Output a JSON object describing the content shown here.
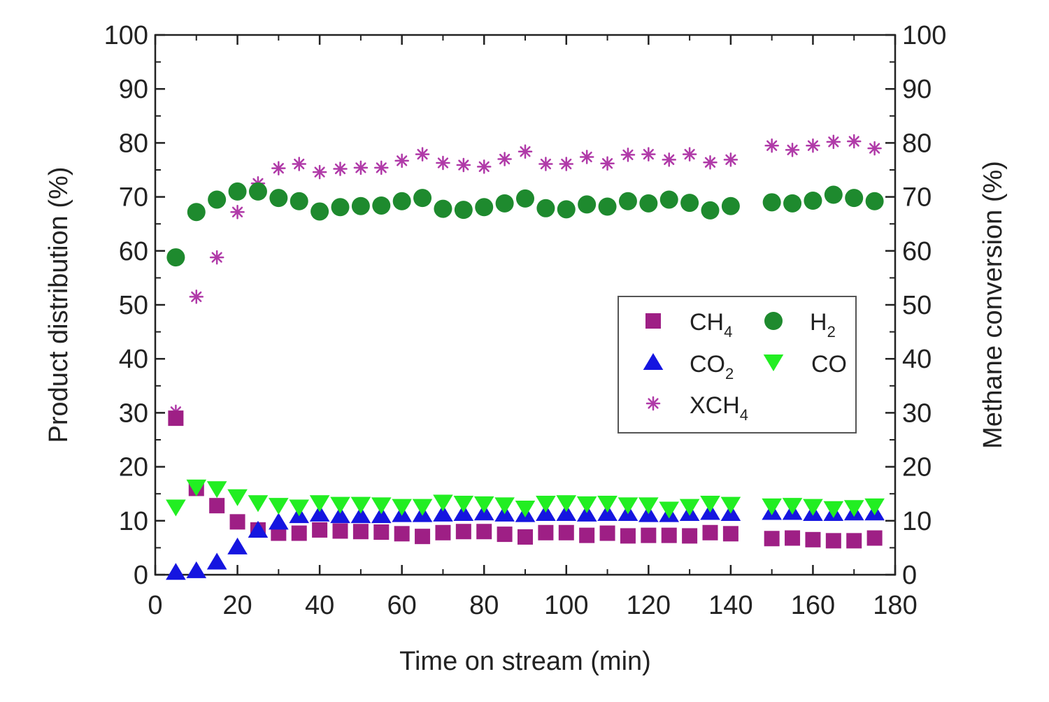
{
  "chart_data": {
    "type": "scatter",
    "xlabel": "Time on stream (min)",
    "ylabel_left": "Product distribution (%)",
    "ylabel_right": "Methane conversion (%)",
    "xlim": [
      0,
      180
    ],
    "ylim": [
      0,
      100
    ],
    "x_ticks": [
      "0",
      "20",
      "40",
      "60",
      "80",
      "100",
      "120",
      "140",
      "160",
      "180"
    ],
    "y_ticks": [
      "0",
      "10",
      "20",
      "30",
      "40",
      "50",
      "60",
      "70",
      "80",
      "90",
      "100"
    ],
    "grid": false,
    "legend_position": "center-right",
    "legend": [
      {
        "base": "CH",
        "sub": "4"
      },
      {
        "base": "H",
        "sub": "2"
      },
      {
        "base": "CO",
        "sub": "2"
      },
      {
        "base": "CO",
        "sub": ""
      },
      {
        "base": "XCH",
        "sub": "4"
      }
    ],
    "x": [
      5,
      10,
      15,
      20,
      25,
      30,
      35,
      40,
      45,
      50,
      55,
      60,
      65,
      70,
      75,
      80,
      85,
      90,
      95,
      100,
      105,
      110,
      115,
      120,
      125,
      130,
      135,
      140,
      150,
      155,
      160,
      165,
      170,
      175
    ],
    "series": [
      {
        "name": "CH4",
        "marker": "square",
        "color": "#9e1f85",
        "values": [
          29,
          16,
          12.8,
          9.8,
          8.3,
          7.7,
          7.7,
          8.3,
          8.1,
          8.0,
          7.9,
          7.6,
          7.1,
          7.8,
          8.0,
          8.0,
          7.5,
          7.0,
          7.8,
          7.8,
          7.3,
          7.7,
          7.2,
          7.3,
          7.3,
          7.2,
          7.8,
          7.6,
          6.7,
          6.8,
          6.5,
          6.3,
          6.3,
          6.8
        ]
      },
      {
        "name": "H2",
        "marker": "circle",
        "color": "#1e8a2e",
        "values": [
          58.8,
          67.2,
          69.5,
          71.0,
          71.0,
          69.8,
          69.2,
          67.3,
          68.1,
          68.3,
          68.4,
          69.2,
          69.8,
          67.8,
          67.6,
          68.1,
          68.8,
          69.7,
          67.9,
          67.7,
          68.6,
          68.2,
          69.2,
          68.8,
          69.5,
          68.9,
          67.5,
          68.3,
          69.0,
          68.8,
          69.3,
          70.4,
          69.8,
          69.2
        ]
      },
      {
        "name": "CO2",
        "marker": "triangle-up",
        "color": "#1515e0",
        "values": [
          0.5,
          0.8,
          2.4,
          5.2,
          8.3,
          9.8,
          11.0,
          11.3,
          11.0,
          11.0,
          11.0,
          11.2,
          11.2,
          11.3,
          11.4,
          11.5,
          11.3,
          11.2,
          11.4,
          11.4,
          11.3,
          11.4,
          11.4,
          11.2,
          11.2,
          11.4,
          11.6,
          11.4,
          11.6,
          11.6,
          11.4,
          11.4,
          11.5,
          11.5
        ]
      },
      {
        "name": "CO",
        "marker": "triangle-down",
        "color": "#22ee22",
        "values": [
          12.5,
          16.2,
          15.9,
          14.4,
          13.3,
          12.8,
          12.5,
          13.3,
          13.0,
          13.0,
          12.9,
          12.6,
          12.6,
          13.4,
          13.2,
          13.1,
          12.9,
          12.3,
          13.2,
          13.3,
          13.1,
          13.2,
          12.9,
          12.9,
          12.1,
          12.6,
          13.2,
          13.0,
          12.7,
          12.8,
          12.6,
          12.2,
          12.4,
          12.7
        ]
      },
      {
        "name": "XCH4",
        "marker": "asterisk",
        "color": "#b03aa8",
        "values": [
          30.2,
          51.5,
          58.8,
          67.2,
          72.5,
          75.3,
          76.1,
          74.6,
          75.2,
          75.4,
          75.4,
          76.7,
          77.9,
          76.3,
          75.9,
          75.6,
          77.0,
          78.4,
          76.1,
          76.1,
          77.4,
          76.2,
          77.8,
          77.9,
          76.9,
          77.9,
          76.4,
          76.9,
          79.5,
          78.7,
          79.5,
          80.2,
          80.3,
          79.0
        ]
      }
    ]
  }
}
